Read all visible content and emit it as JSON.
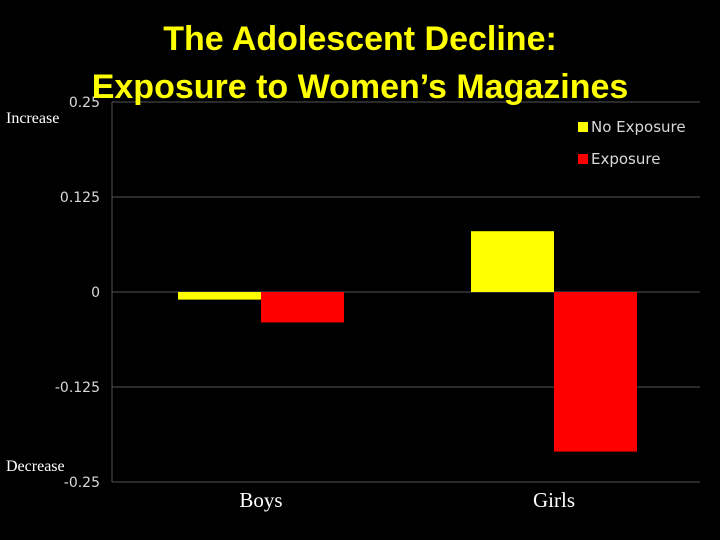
{
  "header": {
    "title_line1": "The Adolescent Decline:",
    "title_line2": "Exposure to Women’s Magazines"
  },
  "side_labels": {
    "top": "Increase",
    "bottom": "Decrease"
  },
  "colors": {
    "background": "#000000",
    "title": "#ffff00",
    "no_exposure": "#ffff00",
    "exposure": "#ff0000",
    "grid": "#555555"
  },
  "chart_data": {
    "type": "bar",
    "title": "The Adolescent Decline: Exposure to Women’s Magazines",
    "categories": [
      "Boys",
      "Girls"
    ],
    "series": [
      {
        "name": "No Exposure",
        "values": [
          -0.01,
          0.08
        ],
        "color": "#ffff00"
      },
      {
        "name": "Exposure",
        "values": [
          -0.04,
          -0.21
        ],
        "color": "#ff0000"
      }
    ],
    "yticks": [
      "0.25",
      "0.125",
      "0",
      "-0.125",
      "-0.25"
    ],
    "ylim": [
      -0.25,
      0.25
    ],
    "grid": true,
    "legend": "top-right",
    "xlabel": "",
    "ylabel": ""
  }
}
